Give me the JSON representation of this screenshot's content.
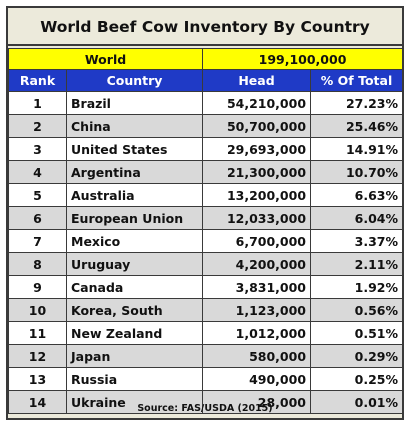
{
  "title": "World Beef Cow Inventory By Country",
  "world": {
    "label": "World",
    "value": "199,100,000"
  },
  "columns": [
    "Rank",
    "Country",
    "Head",
    "% Of Total"
  ],
  "rows": [
    {
      "rank": "1",
      "country": "Brazil",
      "head": "54,210,000",
      "pct": "27.23%"
    },
    {
      "rank": "2",
      "country": "China",
      "head": "50,700,000",
      "pct": "25.46%"
    },
    {
      "rank": "3",
      "country": "United States",
      "head": "29,693,000",
      "pct": "14.91%"
    },
    {
      "rank": "4",
      "country": "Argentina",
      "head": "21,300,000",
      "pct": "10.70%"
    },
    {
      "rank": "5",
      "country": "Australia",
      "head": "13,200,000",
      "pct": "6.63%"
    },
    {
      "rank": "6",
      "country": "European Union",
      "head": "12,033,000",
      "pct": "6.04%"
    },
    {
      "rank": "7",
      "country": "Mexico",
      "head": "6,700,000",
      "pct": "3.37%"
    },
    {
      "rank": "8",
      "country": "Uruguay",
      "head": "4,200,000",
      "pct": "2.11%"
    },
    {
      "rank": "9",
      "country": "Canada",
      "head": "3,831,000",
      "pct": "1.92%"
    },
    {
      "rank": "10",
      "country": "Korea, South",
      "head": "1,123,000",
      "pct": "0.56%"
    },
    {
      "rank": "11",
      "country": "New Zealand",
      "head": "1,012,000",
      "pct": "0.51%"
    },
    {
      "rank": "12",
      "country": "Japan",
      "head": "580,000",
      "pct": "0.29%"
    },
    {
      "rank": "13",
      "country": "Russia",
      "head": "490,000",
      "pct": "0.25%"
    },
    {
      "rank": "14",
      "country": "Ukraine",
      "head": "28,000",
      "pct": "0.01%"
    }
  ],
  "source": "Source: FAS/USDA (2015)",
  "colors": {
    "header_blue": "#1f3ac6",
    "world_yellow": "#ffff00",
    "frame_beige": "#eceadb",
    "alt_row_gray": "#d9d9d9"
  }
}
